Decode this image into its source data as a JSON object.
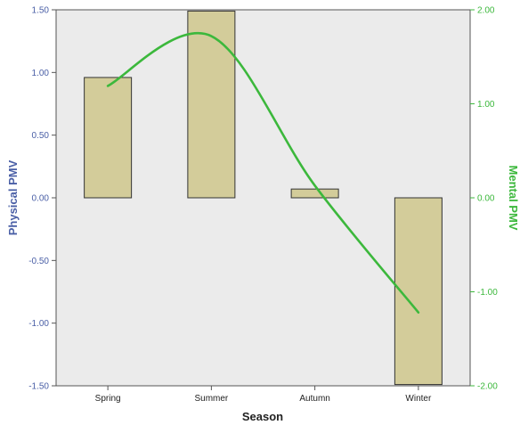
{
  "chart_data": {
    "type": "bar",
    "title": "",
    "xlabel": "Season",
    "categories": [
      "Spring",
      "Summer",
      "Autumn",
      "Winter"
    ],
    "grid": false,
    "series": [
      {
        "axis": "left",
        "type": "bar",
        "values": [
          0.96,
          1.49,
          0.07,
          -1.49
        ]
      },
      {
        "axis": "right",
        "type": "line",
        "smooth": true,
        "values": [
          1.19,
          1.72,
          0.13,
          -1.22
        ]
      }
    ],
    "y_left": {
      "label": "Physical PMV",
      "lim": [
        -1.5,
        1.5
      ],
      "ticks": [
        1.5,
        1.0,
        0.5,
        0.0,
        -0.5,
        -1.0,
        -1.5
      ],
      "tick_labels": [
        "1.50",
        "1.00",
        "0.50",
        "0.00",
        "-0.50",
        "-1.00",
        "-1.50"
      ]
    },
    "y_right": {
      "label": "Mental PMV",
      "lim": [
        -2.0,
        2.0
      ],
      "ticks": [
        2.0,
        1.0,
        0.0,
        -1.0,
        -2.0
      ],
      "tick_labels": [
        "2.00",
        "1.00",
        "0.00",
        "-1.00",
        "-2.00"
      ]
    },
    "colors": {
      "bar_fill": "#d3cc9a",
      "bar_stroke": "#333333",
      "line": "#3cb83c",
      "plot_background": "#ebebeb",
      "left_axis": "#4a5fa6",
      "right_axis": "#3cb83c"
    }
  }
}
